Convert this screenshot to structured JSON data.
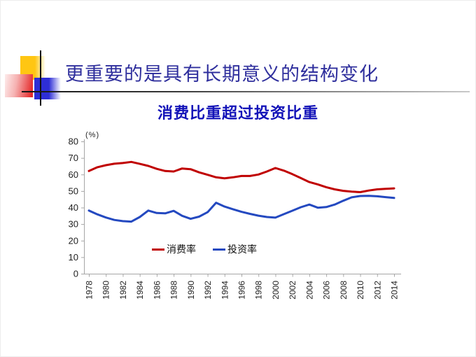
{
  "slide": {
    "title": "更重要的是具有长期意义的结构变化",
    "subtitle": "消费比重超过投资比重"
  },
  "colors": {
    "title": "#2f2f9d",
    "subtitle": "#1313b8",
    "axis": "#a6a6a6",
    "tick_label": "#1f1f1f",
    "consumption_line": "#c00000",
    "investment_line": "#2449c0",
    "deco_yellow": "#ffc613",
    "deco_pink": "#e52929",
    "deco_blue": "#2e2ed6"
  },
  "chart_data": {
    "type": "line",
    "title": "消费比重超过投资比重",
    "unit_label": "(%)",
    "xlabel": "",
    "ylabel": "(%)",
    "ylim": [
      0,
      80
    ],
    "y_ticks": [
      0,
      10,
      20,
      30,
      40,
      50,
      60,
      70,
      80
    ],
    "grid": false,
    "legend_position": "inside-bottom",
    "x": [
      1978,
      1979,
      1980,
      1981,
      1982,
      1983,
      1984,
      1985,
      1986,
      1987,
      1988,
      1989,
      1990,
      1991,
      1992,
      1993,
      1994,
      1995,
      1996,
      1997,
      1998,
      1999,
      2000,
      2001,
      2002,
      2003,
      2004,
      2005,
      2006,
      2007,
      2008,
      2009,
      2010,
      2011,
      2012,
      2013,
      2014
    ],
    "x_tick_labels": [
      "1978",
      "1980",
      "1982",
      "1984",
      "1986",
      "1988",
      "1990",
      "1992",
      "1994",
      "1996",
      "1998",
      "2000",
      "2002",
      "2004",
      "2006",
      "2008",
      "2010",
      "2012",
      "2014"
    ],
    "series": [
      {
        "name": "消费率",
        "color": "#c00000",
        "values": [
          62.1,
          64.4,
          65.6,
          66.5,
          66.9,
          67.6,
          66.4,
          65.2,
          63.4,
          62.1,
          61.8,
          63.6,
          63.2,
          61.3,
          59.8,
          58.3,
          57.7,
          58.3,
          59.1,
          59.1,
          60.0,
          61.8,
          63.9,
          62.3,
          60.2,
          57.8,
          55.4,
          54.0,
          52.3,
          51.0,
          50.1,
          49.6,
          49.3,
          50.3,
          51.0,
          51.3,
          51.6
        ]
      },
      {
        "name": "投资率",
        "color": "#2449c0",
        "values": [
          38.2,
          35.9,
          34.0,
          32.5,
          31.8,
          31.5,
          34.3,
          38.2,
          36.7,
          36.5,
          38.0,
          35.0,
          33.2,
          34.5,
          37.2,
          42.9,
          40.6,
          39.0,
          37.4,
          36.2,
          35.1,
          34.3,
          33.9,
          36.0,
          38.1,
          40.2,
          41.8,
          39.9,
          40.3,
          41.8,
          44.1,
          46.2,
          47.0,
          47.1,
          46.8,
          46.3,
          45.8
        ]
      }
    ]
  }
}
